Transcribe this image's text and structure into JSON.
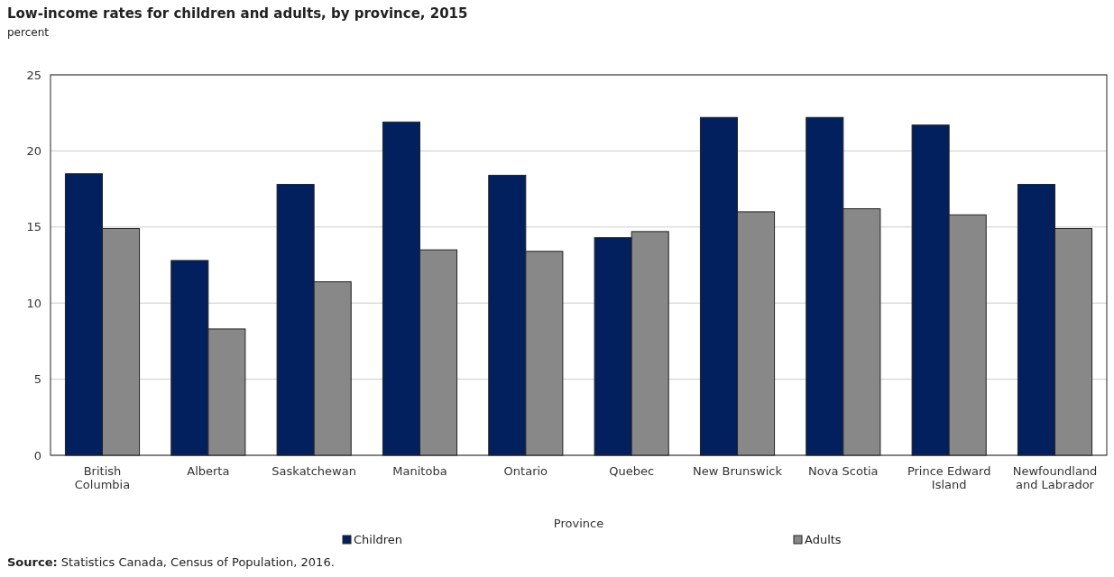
{
  "chart_data": {
    "type": "bar",
    "title": "Low-income rates for children and adults, by province, 2015",
    "ylabel": "percent",
    "xlabel": "Province",
    "categories": [
      "British Columbia",
      "Alberta",
      "Saskatchewan",
      "Manitoba",
      "Ontario",
      "Quebec",
      "New Brunswick",
      "Nova Scotia",
      "Prince Edward Island",
      "Newfoundland and Labrador"
    ],
    "series": [
      {
        "name": "Children",
        "color": "#03205e",
        "values": [
          18.5,
          12.8,
          17.8,
          21.9,
          18.4,
          14.3,
          22.2,
          22.2,
          21.7,
          17.8
        ]
      },
      {
        "name": "Adults",
        "color": "#888888",
        "values": [
          14.9,
          8.3,
          11.4,
          13.5,
          13.4,
          14.7,
          16.0,
          16.2,
          15.8,
          14.9
        ]
      }
    ],
    "ylim": [
      0,
      25
    ],
    "yticks": [
      0,
      5,
      10,
      15,
      20,
      25
    ],
    "grid": "y",
    "legend": "bottom",
    "annotations": [
      "Source: Statistics Canada, Census of Population, 2016."
    ]
  }
}
